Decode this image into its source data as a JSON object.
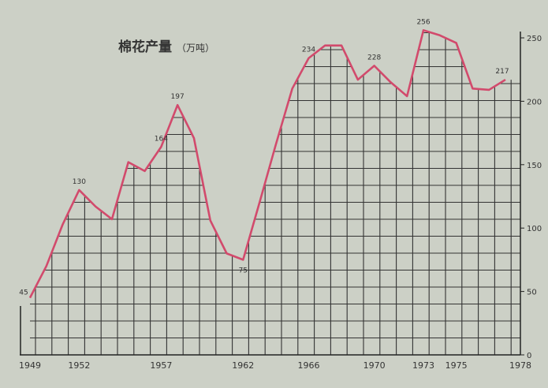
{
  "chart_data": {
    "type": "line",
    "title": "棉花产量",
    "unit": "（万吨）",
    "x": [
      1949,
      1950,
      1951,
      1952,
      1953,
      1954,
      1955,
      1956,
      1957,
      1958,
      1959,
      1960,
      1961,
      1962,
      1963,
      1964,
      1965,
      1966,
      1967,
      1968,
      1969,
      1970,
      1971,
      1972,
      1973,
      1974,
      1975,
      1976,
      1977,
      1978
    ],
    "values": [
      45,
      70,
      103,
      130,
      117,
      107,
      152,
      145,
      164,
      197,
      171,
      106,
      80,
      75,
      120,
      166,
      210,
      234,
      244,
      244,
      217,
      228,
      215,
      204,
      256,
      252,
      246,
      210,
      209,
      217
    ],
    "data_labels": [
      {
        "year": 1949,
        "text": "45"
      },
      {
        "year": 1952,
        "text": "130"
      },
      {
        "year": 1957,
        "text": "164"
      },
      {
        "year": 1958,
        "text": "197"
      },
      {
        "year": 1962,
        "text": "75"
      },
      {
        "year": 1966,
        "text": "234"
      },
      {
        "year": 1970,
        "text": "228"
      },
      {
        "year": 1973,
        "text": "256"
      },
      {
        "year": 1978,
        "text": "217"
      }
    ],
    "x_tick_labels": [
      "1949",
      "1952",
      "1957",
      "1962",
      "1966",
      "1970",
      "1973",
      "1975",
      "1978"
    ],
    "y_ticks": [
      0,
      50,
      100,
      150,
      200,
      250
    ],
    "ylim": [
      0,
      250
    ],
    "y_axis_position": "right",
    "grid": true,
    "line_color": "#d24a6c"
  }
}
